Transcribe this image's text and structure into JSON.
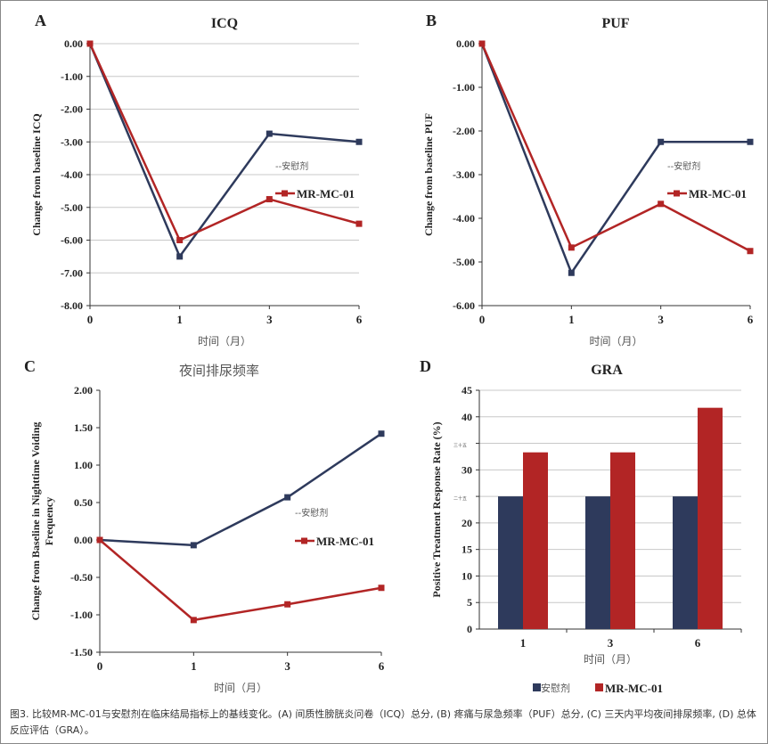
{
  "colors": {
    "placebo": "#2e3a5c",
    "mrmc": "#b22525",
    "grid": "#c8c8c8"
  },
  "caption": "图3. 比较MR-MC-01与安慰剂在临床结局指标上的基线变化。(A) 间质性膀胱炎问卷（ICQ）总分, (B) 疼痛与尿急频率（PUF）总分, (C) 三天内平均夜间排尿频率, (D) 总体反应评估（GRA）。",
  "chart_data": [
    {
      "panel": "A",
      "type": "line",
      "title": "ICQ",
      "xlabel": "时间（月）",
      "ylabel": "Change from baseline ICQ",
      "categories": [
        "0",
        "1",
        "3",
        "6"
      ],
      "ylim": [
        -8,
        0
      ],
      "yticks": [
        "0.00",
        "-1.00",
        "-2.00",
        "-3.00",
        "-4.00",
        "-5.00",
        "-6.00",
        "-7.00",
        "-8.00"
      ],
      "grid": true,
      "legend": "right",
      "series": [
        {
          "name": "--安慰剂",
          "values": [
            0,
            -6.5,
            -2.75,
            -3.0
          ]
        },
        {
          "name": "MR-MC-01",
          "values": [
            0,
            -6.0,
            -4.75,
            -5.5
          ]
        }
      ]
    },
    {
      "panel": "B",
      "type": "line",
      "title": "PUF",
      "xlabel": "时间（月）",
      "ylabel": "Change from baseline PUF",
      "categories": [
        "0",
        "1",
        "3",
        "6"
      ],
      "ylim": [
        -6,
        0
      ],
      "yticks": [
        "0.00",
        "-1.00",
        "-2.00",
        "-3.00",
        "-4.00",
        "-5.00",
        "-6.00"
      ],
      "grid": false,
      "legend": "right",
      "series": [
        {
          "name": "--安慰剂",
          "values": [
            0,
            -5.25,
            -2.25,
            -2.25
          ]
        },
        {
          "name": "MR-MC-01",
          "values": [
            0,
            -4.67,
            -3.67,
            -4.75
          ]
        }
      ]
    },
    {
      "panel": "C",
      "type": "line",
      "title": "夜间排尿频率",
      "xlabel": "时间（月）",
      "ylabel": "Change from Baseline in Nighttime Voiding Frequency",
      "categories": [
        "0",
        "1",
        "3",
        "6"
      ],
      "ylim": [
        -1.5,
        2
      ],
      "yticks": [
        "2.00",
        "1.50",
        "1.00",
        "0.50",
        "0.00",
        "-0.50",
        "-1.00",
        "-1.50"
      ],
      "grid": false,
      "legend": "right",
      "series": [
        {
          "name": "--安慰剂",
          "values": [
            0,
            -0.07,
            0.57,
            1.42
          ]
        },
        {
          "name": "MR-MC-01",
          "values": [
            0,
            -1.07,
            -0.86,
            -0.64
          ]
        }
      ]
    },
    {
      "panel": "D",
      "type": "bar",
      "title": "GRA",
      "xlabel": "时间（月）",
      "ylabel": "Positive Treatment Response Rate (%)",
      "categories": [
        "1",
        "3",
        "6"
      ],
      "ylim": [
        0,
        45
      ],
      "yticks": [
        "45",
        "40",
        "三十五",
        "30",
        "二十五",
        "20",
        "15",
        "10",
        "5",
        "0"
      ],
      "grid": true,
      "legend": "bottom",
      "series": [
        {
          "name": "安慰剂",
          "values": [
            25,
            25,
            25
          ]
        },
        {
          "name": "MR-MC-01",
          "values": [
            33.3,
            33.3,
            41.7
          ]
        }
      ]
    }
  ]
}
